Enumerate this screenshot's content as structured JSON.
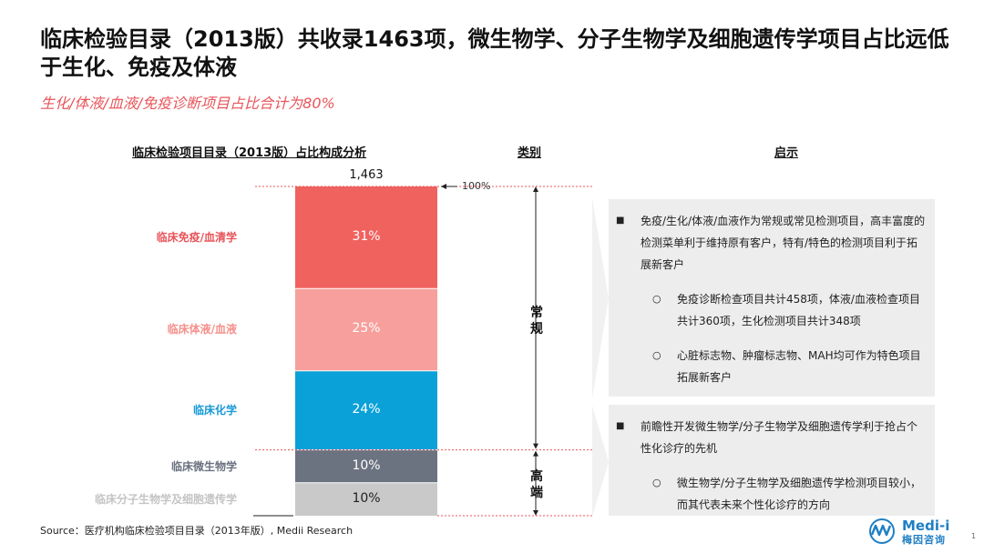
{
  "title": "临床检验目录（2013版）共收录1463项，微生物学、分子生物学及细胞遗传学项目占比远低于生化、免疫及体液",
  "subtitle": "生化/体液/血液/免疫诊断项目占比合计为80%",
  "columns": {
    "chart_title": "临床检验项目目录（2013版）占比构成分析",
    "category": "类别",
    "insight": "启示"
  },
  "categories": {
    "routine": "常规",
    "highend": "高端"
  },
  "insights": {
    "box1": {
      "main": "免疫/生化/体液/血液作为常规或常见检测项目，高丰富度的检测菜单利于维持原有客户，特有/特色的检测项目利于拓展新客户",
      "subs": [
        "免疫诊断检查项目共计458项，体液/血液检查项目共计360项，生化检测项目共计348项",
        "心脏标志物、肿瘤标志物、MAH均可作为特色项目拓展新客户"
      ]
    },
    "box2": {
      "main": "前瞻性开发微生物学/分子生物学及细胞遗传学利于抢占个性化诊疗的先机",
      "subs": [
        "微生物学/分子生物学及细胞遗传学检测项目较小，而其代表未来个性化诊疗的方向"
      ]
    }
  },
  "source": "Source：医疗机构临床检验项目目录（2013年版）, Medii Research",
  "logo": {
    "name": "Medi-i",
    "sub": "梅因咨询"
  },
  "page_number": "1",
  "colors": {
    "immuno": "#f0625e",
    "fluid": "#f79f9c",
    "chem": "#0aa1d9",
    "micro": "#6b7280",
    "molecular": "#c9c9c9",
    "accent": "#e8555a"
  },
  "chart_data": {
    "type": "bar",
    "stacked": true,
    "total_label": "1,463",
    "top_label": "100%",
    "series": [
      {
        "name": "临床免疫/血清学",
        "value": 31,
        "label": "31%",
        "color": "#f0625e",
        "label_color": "#e8555a"
      },
      {
        "name": "临床体液/血液",
        "value": 25,
        "label": "25%",
        "color": "#f79f9c",
        "label_color": "#f4908c"
      },
      {
        "name": "临床化学",
        "value": 24,
        "label": "24%",
        "color": "#0aa1d9",
        "label_color": "#1a9ad6"
      },
      {
        "name": "临床微生物学",
        "value": 10,
        "label": "10%",
        "color": "#6b7280",
        "label_color": "#6b7280"
      },
      {
        "name": "临床分子生物学及细胞遗传学",
        "value": 10,
        "label": "10%",
        "color": "#c9c9c9",
        "label_color": "#c4c4c4"
      }
    ]
  }
}
